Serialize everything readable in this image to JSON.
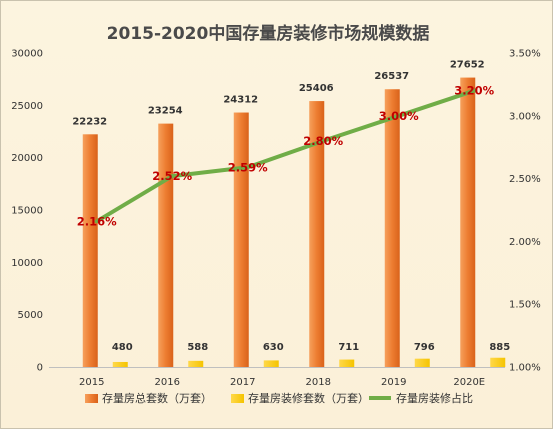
{
  "chart_data": {
    "type": "bar+line",
    "title": "2015-2020中国存量房装修市场规模数据",
    "categories": [
      "2015",
      "2016",
      "2017",
      "2018",
      "2019",
      "2020E"
    ],
    "series": [
      {
        "name": "存量房总套数（万套）",
        "type": "bar",
        "axis": "left",
        "color": "#ed7d31",
        "values": [
          22232,
          23254,
          24312,
          25406,
          26537,
          27652
        ]
      },
      {
        "name": "存量房装修套数（万套）",
        "type": "bar",
        "axis": "left",
        "color": "#f5c400",
        "values": [
          480,
          588,
          630,
          711,
          796,
          885
        ]
      },
      {
        "name": "存量房装修占比",
        "type": "line",
        "axis": "right",
        "color": "#70ad47",
        "values": [
          2.16,
          2.52,
          2.59,
          2.8,
          3.0,
          3.2
        ],
        "labels": [
          "2.16%",
          "2.52%",
          "2.59%",
          "2.80%",
          "3.00%",
          "3.20%"
        ]
      }
    ],
    "y_left": {
      "min": 0,
      "max": 30000,
      "ticks": [
        "0",
        "5000",
        "10000",
        "15000",
        "20000",
        "25000",
        "30000"
      ]
    },
    "y_right": {
      "min": 1.0,
      "max": 3.5,
      "ticks": [
        "1.00%",
        "1.50%",
        "2.00%",
        "2.50%",
        "3.00%",
        "3.50%"
      ]
    },
    "grid": false,
    "legend_position": "bottom"
  }
}
